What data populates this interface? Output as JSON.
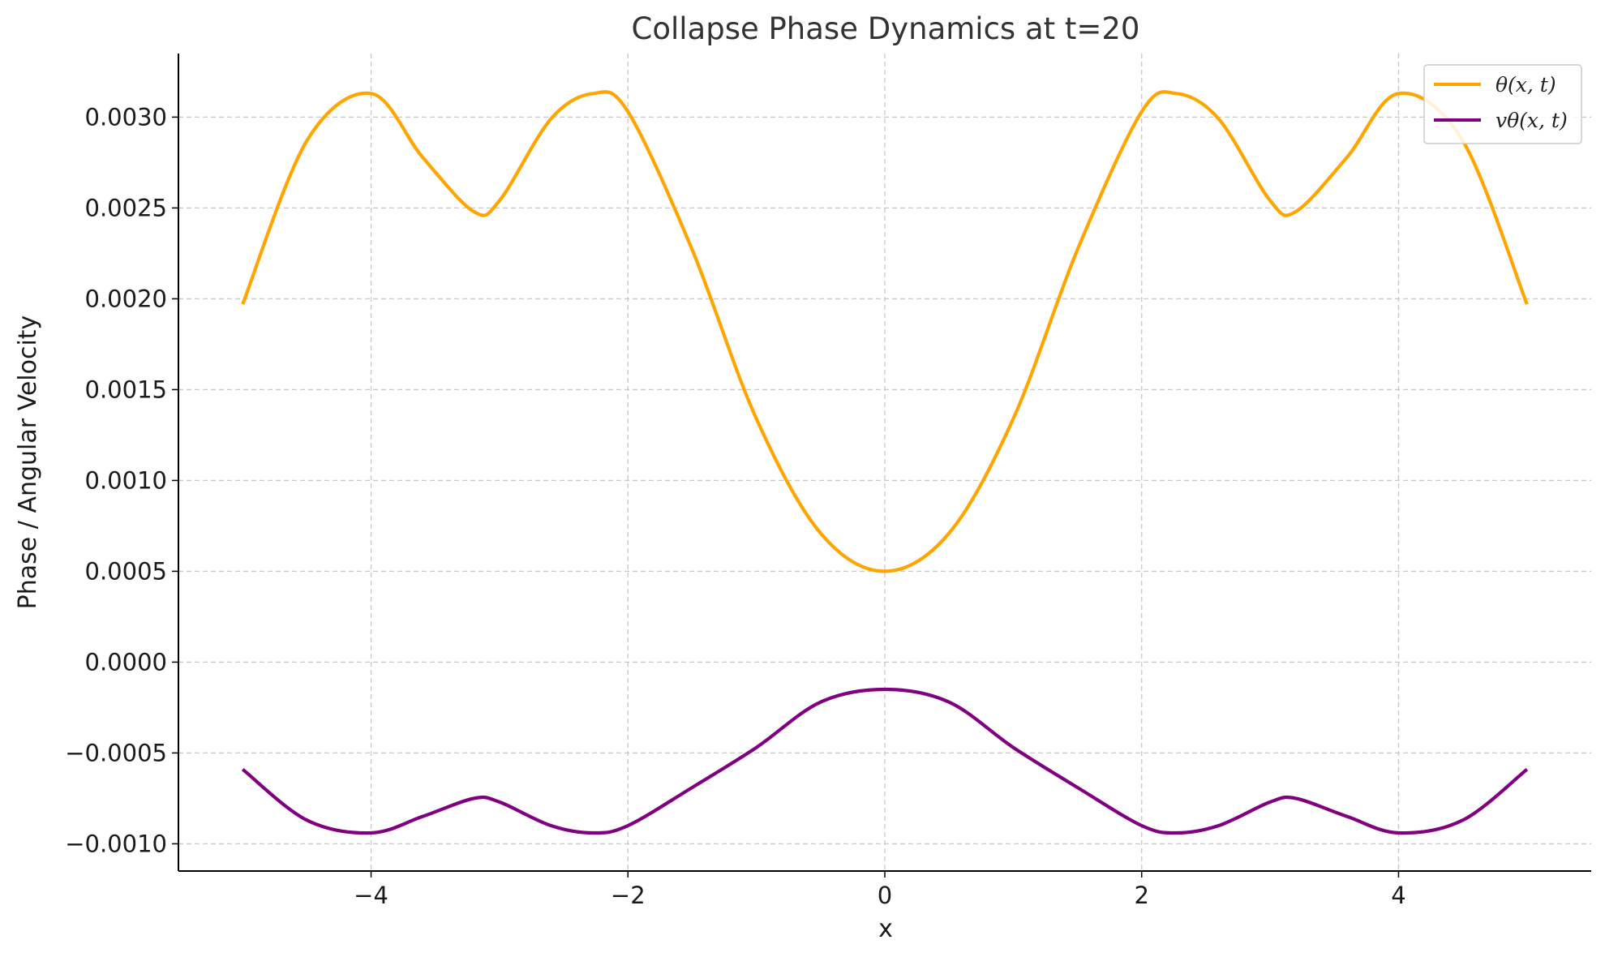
{
  "chart_data": {
    "type": "line",
    "title": "Collapse Phase Dynamics at t=20",
    "xlabel": "x",
    "ylabel": "Phase / Angular Velocity",
    "xlim": [
      -5.5,
      5.5
    ],
    "ylim": [
      -0.00115,
      0.00335
    ],
    "grid": true,
    "legend_position": "top-right",
    "x_ticks": [
      -4,
      -2,
      0,
      2,
      4
    ],
    "x_tick_labels": [
      "−4",
      "−2",
      "0",
      "2",
      "4"
    ],
    "y_ticks": [
      0.003,
      0.0025,
      0.002,
      0.0015,
      0.001,
      0.0005,
      0.0,
      -0.0005,
      -0.001
    ],
    "y_tick_labels": [
      "0.0030",
      "0.0025",
      "0.0020",
      "0.0015",
      "0.0010",
      "0.0005",
      "0.0000",
      "−0.0005",
      "−0.0010"
    ],
    "x": [
      -5.0,
      -4.5,
      -4.0,
      -3.6,
      -3.2,
      -3.0,
      -2.6,
      -2.27,
      -2.0,
      -1.5,
      -1.0,
      -0.5,
      0.0,
      0.5,
      1.0,
      1.5,
      2.0,
      2.27,
      2.6,
      3.0,
      3.2,
      3.6,
      4.0,
      4.5,
      5.0
    ],
    "series": [
      {
        "name": "θ(x, t)",
        "color": "#FFA500",
        "values": [
          0.00197,
          0.00287,
          0.00313,
          0.00278,
          0.00248,
          0.00254,
          0.00299,
          0.00313,
          0.00303,
          0.00227,
          0.00134,
          0.00071,
          0.0005,
          0.00071,
          0.00134,
          0.00227,
          0.00303,
          0.00313,
          0.00299,
          0.00254,
          0.00248,
          0.00278,
          0.00313,
          0.00287,
          0.00197
        ]
      },
      {
        "name": "vθ(x, t)",
        "color": "#800080",
        "values": [
          -0.00059,
          -0.00087,
          -0.00094,
          -0.00085,
          -0.00075,
          -0.00077,
          -0.0009,
          -0.00094,
          -0.0009,
          -0.00069,
          -0.00047,
          -0.00022,
          -0.00015,
          -0.00022,
          -0.00047,
          -0.00069,
          -0.0009,
          -0.00094,
          -0.0009,
          -0.00077,
          -0.00075,
          -0.00085,
          -0.00094,
          -0.00087,
          -0.00059
        ]
      }
    ]
  }
}
